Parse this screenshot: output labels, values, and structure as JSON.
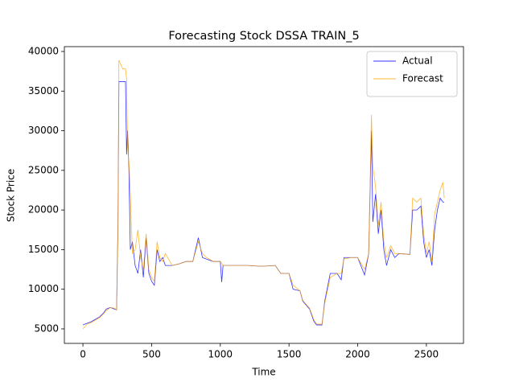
{
  "chart_data": {
    "type": "line",
    "title": "Forecasting Stock DSSA TRAIN_5",
    "xlabel": "Time",
    "ylabel": "Stock Price",
    "x": [
      0,
      30,
      60,
      90,
      120,
      150,
      170,
      200,
      230,
      245,
      255,
      262,
      290,
      310,
      318,
      325,
      335,
      345,
      360,
      380,
      400,
      420,
      440,
      460,
      480,
      500,
      520,
      540,
      560,
      580,
      600,
      650,
      700,
      750,
      800,
      840,
      870,
      900,
      950,
      1000,
      1010,
      1020,
      1100,
      1200,
      1300,
      1400,
      1440,
      1500,
      1530,
      1580,
      1600,
      1650,
      1680,
      1700,
      1740,
      1760,
      1800,
      1850,
      1880,
      1900,
      1950,
      2000,
      2050,
      2080,
      2100,
      2110,
      2130,
      2150,
      2170,
      2190,
      2210,
      2240,
      2270,
      2300,
      2380,
      2400,
      2430,
      2460,
      2480,
      2500,
      2520,
      2540,
      2560,
      2580,
      2600,
      2620,
      2630
    ],
    "series": [
      {
        "name": "Actual",
        "color": "#0000ff",
        "values": [
          5500,
          5700,
          5900,
          6200,
          6500,
          7000,
          7500,
          7700,
          7500,
          7400,
          18000,
          36200,
          36200,
          36200,
          27000,
          30000,
          25000,
          15000,
          16000,
          13000,
          12000,
          15000,
          11500,
          16500,
          12000,
          11000,
          10500,
          15000,
          13500,
          14000,
          13000,
          13000,
          13200,
          13500,
          13500,
          16500,
          14000,
          13800,
          13500,
          13500,
          10900,
          13000,
          13000,
          13000,
          12900,
          13000,
          12000,
          12000,
          10000,
          9800,
          8500,
          7500,
          6000,
          5500,
          5500,
          8500,
          12000,
          12000,
          11200,
          14000,
          14000,
          14000,
          11800,
          14500,
          30000,
          18500,
          22000,
          17000,
          20000,
          15000,
          13000,
          15000,
          14000,
          14500,
          14400,
          20000,
          20000,
          20500,
          16000,
          14000,
          15000,
          13000,
          17500,
          20000,
          21500,
          21000,
          21000
        ]
      },
      {
        "name": "Forecast",
        "color": "#ffa500",
        "values": [
          5000,
          5600,
          5800,
          6100,
          6400,
          6900,
          7300,
          7700,
          7600,
          7400,
          17000,
          38900,
          37800,
          37800,
          36500,
          28000,
          26000,
          22000,
          14500,
          15000,
          17500,
          14000,
          12500,
          17000,
          12500,
          11500,
          11000,
          16000,
          14000,
          13500,
          14500,
          13000,
          13200,
          13500,
          13500,
          16000,
          14500,
          14000,
          13500,
          13500,
          13300,
          13000,
          13000,
          13000,
          12900,
          13000,
          12000,
          12000,
          10500,
          9800,
          8600,
          7600,
          6200,
          5600,
          5600,
          8200,
          11500,
          12000,
          12000,
          13800,
          14000,
          14000,
          12500,
          14500,
          32000,
          25500,
          23000,
          18000,
          21000,
          16000,
          14000,
          15500,
          14500,
          14500,
          14400,
          21500,
          21000,
          21500,
          17000,
          14500,
          16000,
          13500,
          19500,
          21000,
          22500,
          23500,
          21500
        ]
      }
    ],
    "xlim": [
      -135,
      2770
    ],
    "ylim": [
      3170,
      40610
    ],
    "xticks": [
      0,
      500,
      1000,
      1500,
      2000,
      2500
    ],
    "yticks": [
      5000,
      10000,
      15000,
      20000,
      25000,
      30000,
      35000,
      40000
    ],
    "grid": false,
    "legend": "upper right"
  }
}
